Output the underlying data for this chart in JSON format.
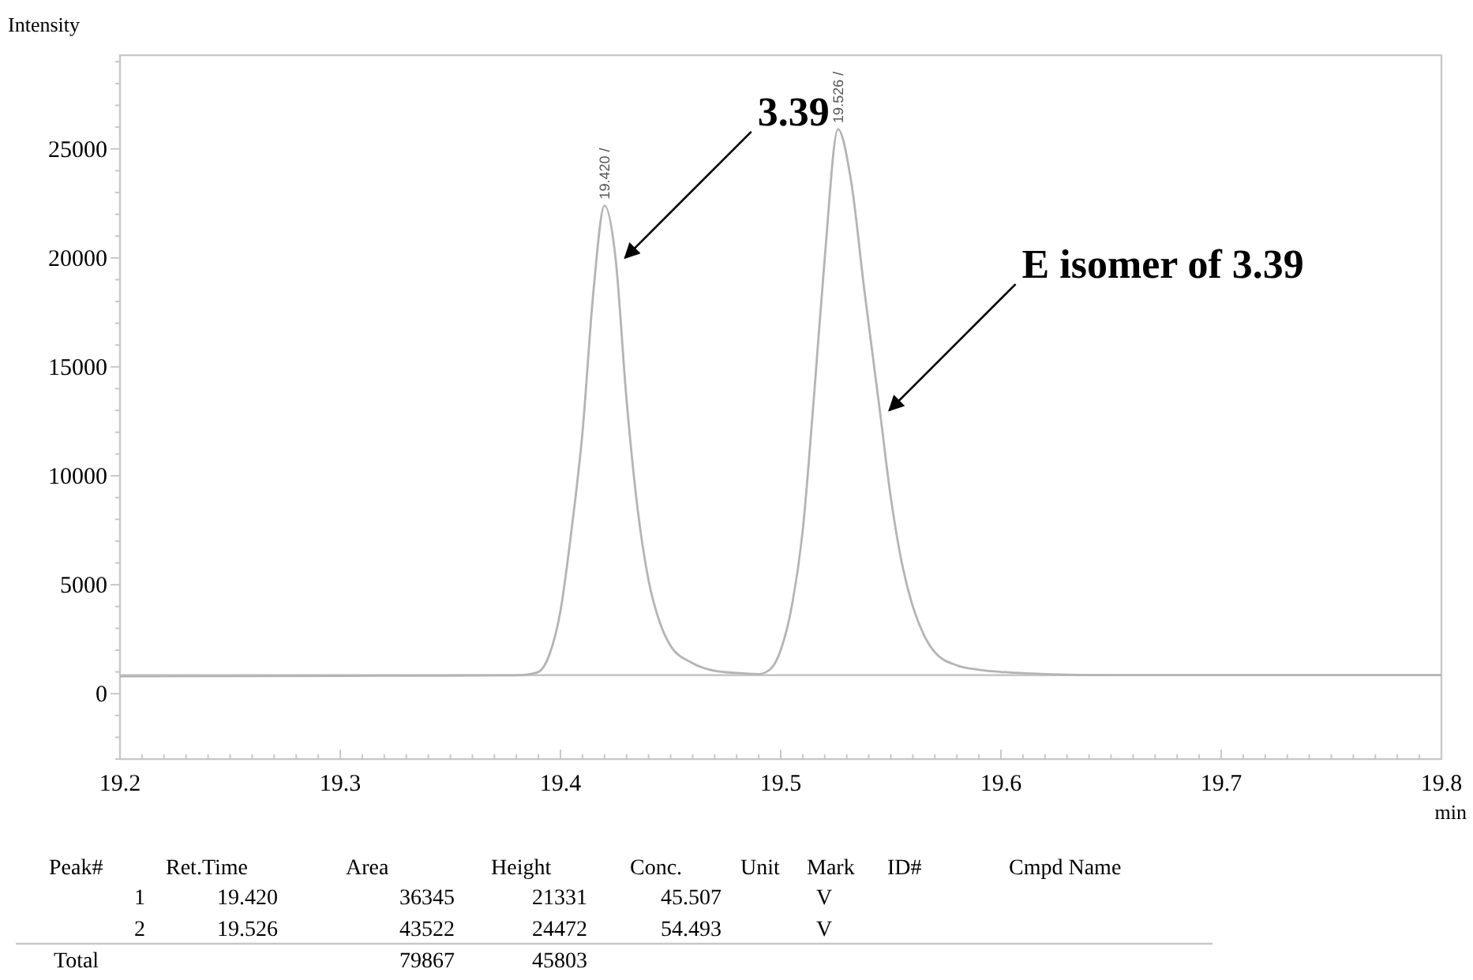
{
  "chart_data": {
    "type": "line",
    "xlabel": "min",
    "ylabel": "Intensity",
    "xlim": [
      19.2,
      19.8
    ],
    "ylim": [
      -3000,
      29300
    ],
    "xticks": [
      19.2,
      {
        "value": 19.21,
        "label": null
      },
      {
        "value": 19.22,
        "label": null
      },
      {
        "value": 19.23,
        "label": null
      },
      {
        "value": 19.24,
        "label": null
      },
      {
        "value": 19.25,
        "label": null
      },
      {
        "value": 19.26,
        "label": null
      },
      {
        "value": 19.27,
        "label": null
      },
      {
        "value": 19.28,
        "label": null
      },
      {
        "value": 19.29,
        "label": null
      },
      19.3,
      {
        "value": 19.31,
        "label": null
      },
      {
        "value": 19.32,
        "label": null
      },
      {
        "value": 19.33,
        "label": null
      },
      {
        "value": 19.34,
        "label": null
      },
      {
        "value": 19.35,
        "label": null
      },
      {
        "value": 19.36,
        "label": null
      },
      {
        "value": 19.37,
        "label": null
      },
      {
        "value": 19.38,
        "label": null
      },
      {
        "value": 19.39,
        "label": null
      },
      19.4,
      {
        "value": 19.41,
        "label": null
      },
      {
        "value": 19.42,
        "label": null
      },
      {
        "value": 19.43,
        "label": null
      },
      {
        "value": 19.44,
        "label": null
      },
      {
        "value": 19.45,
        "label": null
      },
      {
        "value": 19.46,
        "label": null
      },
      {
        "value": 19.47,
        "label": null
      },
      {
        "value": 19.48,
        "label": null
      },
      {
        "value": 19.49,
        "label": null
      },
      19.5,
      {
        "value": 19.51,
        "label": null
      },
      {
        "value": 19.52,
        "label": null
      },
      {
        "value": 19.53,
        "label": null
      },
      {
        "value": 19.54,
        "label": null
      },
      {
        "value": 19.55,
        "label": null
      },
      {
        "value": 19.56,
        "label": null
      },
      {
        "value": 19.57,
        "label": null
      },
      {
        "value": 19.58,
        "label": null
      },
      {
        "value": 19.59,
        "label": null
      },
      19.6,
      {
        "value": 19.61,
        "label": null
      },
      {
        "value": 19.62,
        "label": null
      },
      {
        "value": 19.63,
        "label": null
      },
      {
        "value": 19.64,
        "label": null
      },
      {
        "value": 19.65,
        "label": null
      },
      {
        "value": 19.66,
        "label": null
      },
      {
        "value": 19.67,
        "label": null
      },
      {
        "value": 19.68,
        "label": null
      },
      {
        "value": 19.69,
        "label": null
      },
      19.7,
      {
        "value": 19.71,
        "label": null
      },
      {
        "value": 19.72,
        "label": null
      },
      {
        "value": 19.73,
        "label": null
      },
      {
        "value": 19.74,
        "label": null
      },
      {
        "value": 19.75,
        "label": null
      },
      {
        "value": 19.76,
        "label": null
      },
      {
        "value": 19.77,
        "label": null
      },
      {
        "value": 19.78,
        "label": null
      },
      {
        "value": 19.79,
        "label": null
      },
      19.8
    ],
    "yticks": [
      {
        "value": -3000,
        "label": null
      },
      {
        "value": -2000,
        "label": null
      },
      {
        "value": -1000,
        "label": null
      },
      0,
      {
        "value": 1000,
        "label": null
      },
      {
        "value": 2000,
        "label": null
      },
      {
        "value": 3000,
        "label": null
      },
      {
        "value": 4000,
        "label": null
      },
      5000,
      {
        "value": 6000,
        "label": null
      },
      {
        "value": 7000,
        "label": null
      },
      {
        "value": 8000,
        "label": null
      },
      {
        "value": 9000,
        "label": null
      },
      10000,
      {
        "value": 11000,
        "label": null
      },
      {
        "value": 12000,
        "label": null
      },
      {
        "value": 13000,
        "label": null
      },
      {
        "value": 14000,
        "label": null
      },
      15000,
      {
        "value": 16000,
        "label": null
      },
      {
        "value": 17000,
        "label": null
      },
      {
        "value": 18000,
        "label": null
      },
      {
        "value": 19000,
        "label": null
      },
      20000,
      {
        "value": 21000,
        "label": null
      },
      {
        "value": 22000,
        "label": null
      },
      {
        "value": 23000,
        "label": null
      },
      {
        "value": 24000,
        "label": null
      },
      25000,
      {
        "value": 26000,
        "label": null
      },
      {
        "value": 27000,
        "label": null
      },
      {
        "value": 28000,
        "label": null
      },
      {
        "value": 29000,
        "label": null
      }
    ],
    "ref_lines": [
      {
        "axis": "y",
        "value": 850,
        "color": "#c8c8c8"
      }
    ],
    "series": [
      {
        "color": "#b4b4b4",
        "x": [
          19.2,
          19.25,
          19.3,
          19.35,
          19.38,
          19.385,
          19.39,
          19.395,
          19.4,
          19.405,
          19.41,
          19.415,
          19.42,
          19.425,
          19.43,
          19.435,
          19.44,
          19.445,
          19.45,
          19.46,
          19.47,
          19.48,
          19.49,
          19.495,
          19.5,
          19.505,
          19.51,
          19.515,
          19.52,
          19.526,
          19.532,
          19.538,
          19.545,
          19.55,
          19.555,
          19.56,
          19.565,
          19.57,
          19.58,
          19.59,
          19.6,
          19.62,
          19.65,
          19.7,
          19.8
        ],
        "values": [
          800,
          810,
          820,
          830,
          840,
          880,
          1000,
          1800,
          3800,
          7500,
          12000,
          18500,
          22400,
          20000,
          13500,
          8500,
          5200,
          3300,
          2200,
          1400,
          1050,
          950,
          900,
          1100,
          2000,
          4000,
          7500,
          13500,
          20000,
          25900,
          23500,
          18500,
          13000,
          9000,
          6000,
          4000,
          2700,
          1900,
          1300,
          1100,
          1000,
          900,
          850,
          850,
          850
        ]
      }
    ],
    "annotations": [
      {
        "text": "19.420 /",
        "x": 19.42,
        "y": 22400
      },
      {
        "text": "19.526 /",
        "x": 19.526,
        "y": 25900
      },
      {
        "text": "3.39",
        "x": 19.425,
        "y": 20000
      },
      {
        "text": "E isomer of 3.39",
        "x": 19.545,
        "y": 13000
      },
      "Peak#\tRet.Time\tArea\tHeight\tConc.\tUnit\tMark\tID#\tCmpd Name",
      "1\t19.420\t36345\t21331\t45.507\t\tV\t\t",
      "2\t19.526\t43522\t24472\t54.493\t\tV\t\t",
      "Total\t\t79867\t45803\t\t\t\t\t"
    ]
  }
}
